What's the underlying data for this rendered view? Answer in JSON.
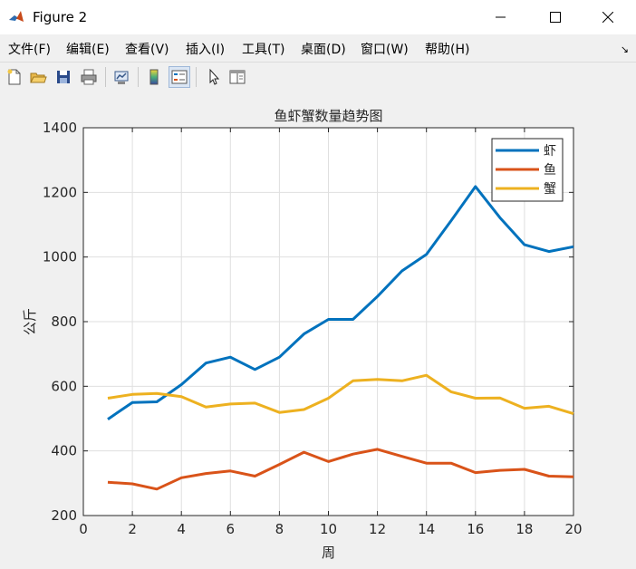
{
  "window": {
    "title": "Figure 2"
  },
  "menu": [
    "文件(F)",
    "编辑(E)",
    "查看(V)",
    "插入(I)",
    "工具(T)",
    "桌面(D)",
    "窗口(W)",
    "帮助(H)"
  ],
  "toolbar": {
    "icons": [
      "new-figure-icon",
      "open-file-icon",
      "save-icon",
      "print-icon",
      "link-plot-icon",
      "colorbar-icon",
      "legend-icon",
      "pointer-icon",
      "property-editor-icon"
    ]
  },
  "colors": {
    "shrimp": "#0072BD",
    "fish": "#D95319",
    "crab": "#EDB120"
  },
  "chart_data": {
    "type": "line",
    "title": "鱼虾蟹数量趋势图",
    "xlabel": "周",
    "ylabel": "公斤",
    "xlim": [
      0,
      20
    ],
    "ylim": [
      200,
      1400
    ],
    "xticks": [
      "0",
      "2",
      "4",
      "6",
      "8",
      "10",
      "12",
      "14",
      "16",
      "18",
      "20"
    ],
    "yticks": [
      "200",
      "400",
      "600",
      "800",
      "1000",
      "1200",
      "1400"
    ],
    "grid": true,
    "legend_position": "top-right",
    "x": [
      1,
      2,
      3,
      4,
      5,
      6,
      7,
      8,
      9,
      10,
      11,
      12,
      13,
      14,
      15,
      16,
      17,
      18,
      19,
      20
    ],
    "series": [
      {
        "name": "虾",
        "color": "#0072BD",
        "values": [
          498,
          550,
          552,
          605,
          672,
          690,
          652,
          690,
          762,
          807,
          807,
          878,
          957,
          1008,
          1112,
          1218,
          1122,
          1038,
          1017,
          1032
        ]
      },
      {
        "name": "鱼",
        "color": "#D95319",
        "values": [
          303,
          298,
          282,
          317,
          330,
          338,
          322,
          358,
          396,
          367,
          390,
          405,
          383,
          362,
          362,
          333,
          340,
          343,
          322,
          320
        ]
      },
      {
        "name": "蟹",
        "color": "#EDB120",
        "values": [
          563,
          575,
          578,
          568,
          536,
          545,
          548,
          519,
          528,
          563,
          617,
          621,
          617,
          634,
          583,
          563,
          564,
          532,
          538,
          515
        ]
      }
    ]
  }
}
